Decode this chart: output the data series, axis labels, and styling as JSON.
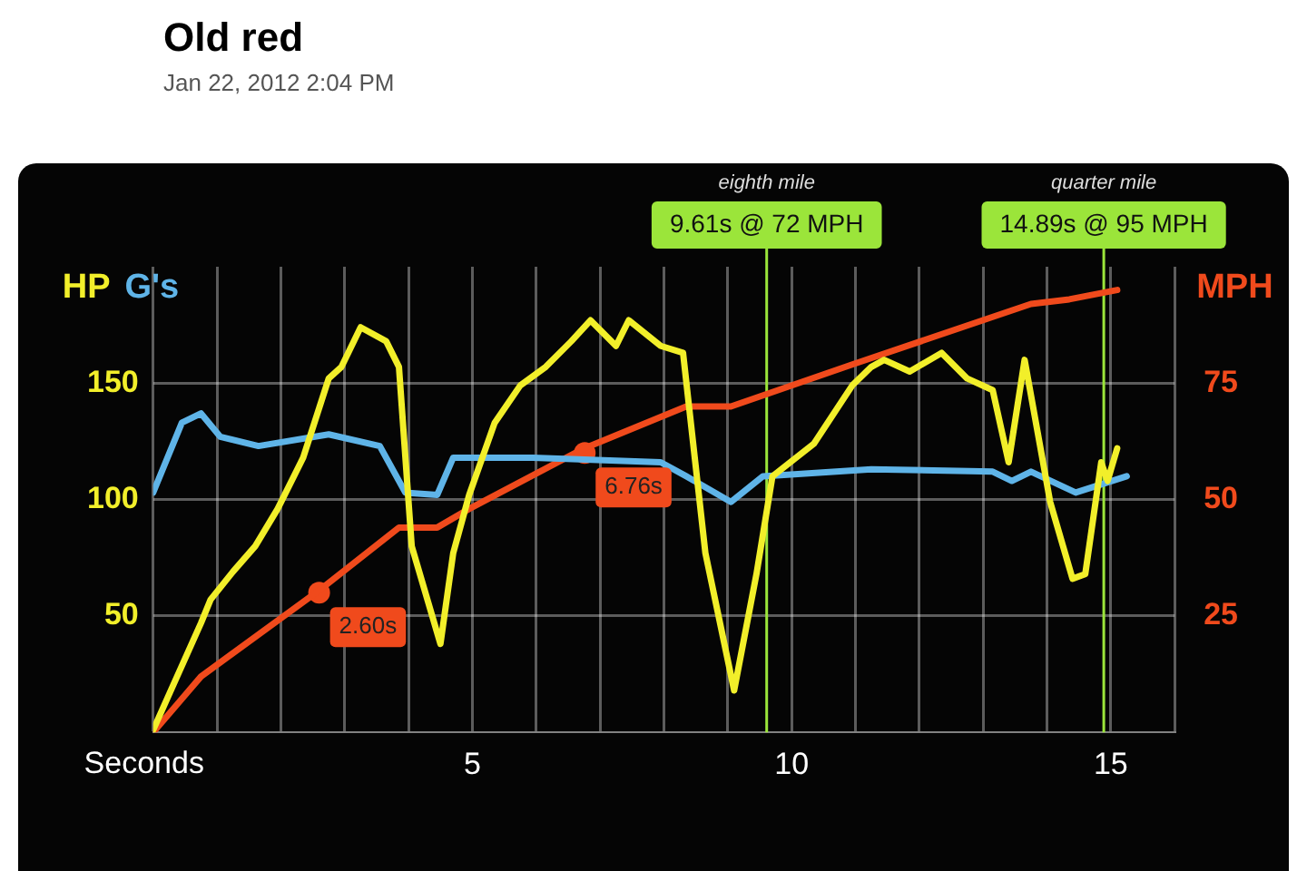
{
  "chart_data": {
    "type": "line",
    "title": "Old red",
    "annotations": [
      "Jan 22, 2012 2:04 PM",
      "eighth mile",
      "quarter mile",
      {
        "text": "2.60s",
        "x": 2.6,
        "y": 60
      },
      {
        "text": "6.76s",
        "x": 6.76,
        "y": 120
      }
    ],
    "xlabel": "Seconds",
    "xlim": [
      0,
      16
    ],
    "xticks": [
      {
        "value": 0,
        "label": null
      },
      {
        "value": 1,
        "label": null
      },
      {
        "value": 2,
        "label": null
      },
      {
        "value": 3,
        "label": null
      },
      {
        "value": 4,
        "label": null
      },
      5,
      {
        "value": 6,
        "label": null
      },
      {
        "value": 7,
        "label": null
      },
      {
        "value": 8,
        "label": null
      },
      {
        "value": 9,
        "label": null
      },
      10,
      {
        "value": 11,
        "label": null
      },
      {
        "value": 12,
        "label": null
      },
      {
        "value": 13,
        "label": null
      },
      {
        "value": 14,
        "label": null
      },
      15,
      {
        "value": 16,
        "label": null
      }
    ],
    "ylim": [
      0,
      200
    ],
    "yticks": [
      50,
      100,
      150
    ],
    "y2lim": [
      0,
      100
    ],
    "y2ticks": [
      25,
      50,
      75
    ],
    "grid": true,
    "legend": false,
    "marker": "none",
    "line_style": "solid",
    "ref_lines": [
      {
        "axis": "x",
        "value": 9.61,
        "label": "9.61s @ 72 MPH",
        "color": "#9be53a"
      },
      {
        "axis": "x",
        "value": 14.89,
        "label": "14.89s @ 95 MPH",
        "color": "#9be53a"
      }
    ],
    "series": [
      {
        "name": "HP",
        "color": "#f2ef2a",
        "x": [
          0,
          0.75,
          0.9,
          1.25,
          1.6,
          1.95,
          2.35,
          2.75,
          2.95,
          3.25,
          3.65,
          3.85,
          4.05,
          4.5,
          4.7,
          4.95,
          5.35,
          5.75,
          6.15,
          6.55,
          6.85,
          7.25,
          7.45,
          7.95,
          8.3,
          8.65,
          9.1,
          9.45,
          9.7,
          10.35,
          10.95,
          11.25,
          11.45,
          11.85,
          12.35,
          12.75,
          13.15,
          13.4,
          13.65,
          14.05,
          14.4,
          14.6,
          14.85,
          14.95,
          15.1
        ],
        "values": [
          1,
          47,
          57,
          69,
          80,
          96,
          118,
          152,
          157,
          174,
          168,
          157,
          80,
          38,
          77,
          102,
          133,
          149,
          157,
          168,
          177,
          166,
          177,
          166,
          163,
          77,
          18,
          68,
          110,
          124,
          149,
          157,
          160,
          155,
          163,
          152,
          147,
          116,
          160,
          99,
          66,
          68,
          116,
          108,
          122
        ]
      },
      {
        "name": "G's",
        "color": "#5fb4e8",
        "x": [
          0,
          0.45,
          0.75,
          1.05,
          1.65,
          2.75,
          3.55,
          3.95,
          4.45,
          4.7,
          5.95,
          7.95,
          8.35,
          9.05,
          9.55,
          11.25,
          13.15,
          13.45,
          13.75,
          14.45,
          15.25
        ],
        "values": [
          103,
          133,
          137,
          127,
          123,
          128,
          123,
          103,
          102,
          118,
          118,
          116,
          110,
          99,
          110,
          113,
          112,
          108,
          112,
          103,
          110
        ]
      },
      {
        "name": "MPH",
        "color": "#f04a1c",
        "axis": "y2",
        "x": [
          0,
          0.75,
          2.65,
          3.85,
          4.45,
          4.95,
          6.75,
          8.35,
          9.05,
          10.95,
          13.75,
          14.35,
          15.1
        ],
        "values": [
          0,
          12,
          31,
          44,
          44,
          48,
          61,
          70,
          70,
          79,
          92,
          93,
          95
        ]
      }
    ]
  }
}
